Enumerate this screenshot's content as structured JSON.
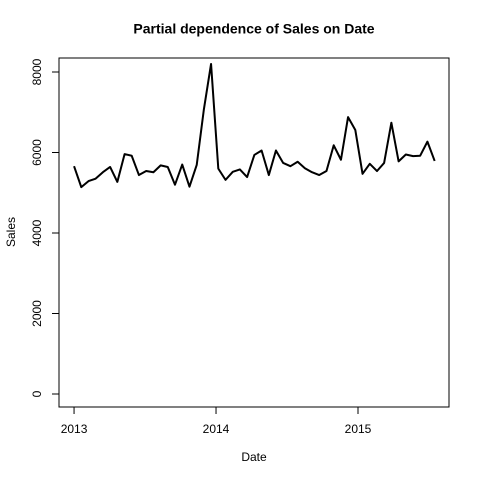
{
  "chart_data": {
    "type": "line",
    "title": "Partial dependence of Sales on Date",
    "x_label": "Date",
    "y_label": "Sales",
    "x": [
      2013,
      2013.051,
      2013.102,
      2013.152,
      2013.203,
      2013.254,
      2013.305,
      2013.356,
      2013.406,
      2013.457,
      2013.508,
      2013.559,
      2013.61,
      2013.66,
      2013.711,
      2013.762,
      2013.813,
      2013.864,
      2013.914,
      2013.965,
      2014.016,
      2014.067,
      2014.118,
      2014.168,
      2014.219,
      2014.27,
      2014.321,
      2014.372,
      2014.422,
      2014.473,
      2014.524,
      2014.575,
      2014.626,
      2014.676,
      2014.727,
      2014.778,
      2014.829,
      2014.88,
      2014.93,
      2014.981,
      2015.032,
      2015.083,
      2015.134,
      2015.184,
      2015.235,
      2015.286,
      2015.337,
      2015.388,
      2015.438,
      2015.489,
      2015.54
    ],
    "series": [
      {
        "name": "Sales",
        "color": "#000000",
        "values": [
          5660,
          5140,
          5290,
          5350,
          5510,
          5640,
          5270,
          5960,
          5920,
          5440,
          5540,
          5510,
          5680,
          5640,
          5200,
          5700,
          5150,
          5690,
          7060,
          8200,
          5600,
          5320,
          5520,
          5580,
          5390,
          5940,
          6050,
          5440,
          6050,
          5740,
          5660,
          5770,
          5610,
          5510,
          5440,
          5540,
          6180,
          5820,
          6880,
          6560,
          5470,
          5720,
          5540,
          5740,
          6740,
          5780,
          5950,
          5910,
          5920,
          6270,
          5790
        ]
      }
    ],
    "xlim": [
      2012.894,
      2015.641
    ],
    "xticks": [
      2013,
      2014,
      2015
    ],
    "ylim": [
      -323,
      8348
    ],
    "yticks": [
      0,
      2000,
      4000,
      6000,
      8000
    ]
  }
}
